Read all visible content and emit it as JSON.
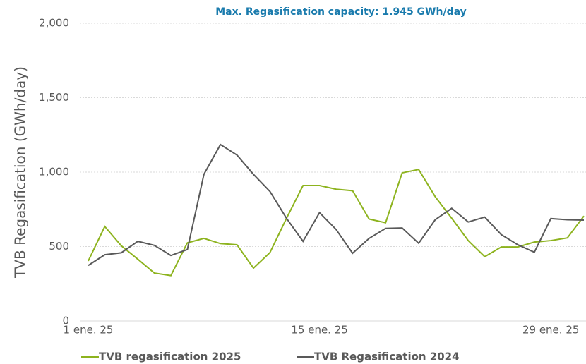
{
  "chart_data": {
    "type": "line",
    "title": "Max. Regasification capacity: 1.945 GWh/day",
    "y_label": "TVB Regasification (GWh/day)",
    "categories": [
      "1 ene. 25",
      null,
      null,
      null,
      null,
      null,
      null,
      null,
      null,
      null,
      null,
      null,
      null,
      null,
      "15 ene. 25",
      null,
      null,
      null,
      null,
      null,
      null,
      null,
      null,
      null,
      null,
      null,
      null,
      null,
      "29 ene. 25",
      null,
      null
    ],
    "series": [
      {
        "name": "TVB regasification 2025",
        "color": "#8db31e",
        "values": [
          403,
          635,
          505,
          415,
          322,
          305,
          525,
          555,
          520,
          512,
          355,
          460,
          690,
          910,
          910,
          885,
          875,
          685,
          660,
          995,
          1018,
          835,
          690,
          540,
          432,
          497,
          497,
          530,
          540,
          558,
          705
        ]
      },
      {
        "name": "TVB Regasification 2024",
        "color": "#595959",
        "values": [
          373,
          445,
          458,
          535,
          508,
          440,
          480,
          985,
          1185,
          1115,
          985,
          870,
          690,
          535,
          728,
          615,
          455,
          555,
          622,
          625,
          522,
          680,
          757,
          665,
          698,
          580,
          512,
          462,
          688,
          680,
          678
        ]
      }
    ],
    "ylim": [
      0,
      2000
    ],
    "yticks": [
      0,
      {
        "value": 500,
        "label": "500"
      },
      {
        "value": 1000,
        "label": "1,000"
      },
      {
        "value": 1500,
        "label": "1,500"
      },
      {
        "value": 2000,
        "label": "2,000"
      }
    ],
    "grid": true
  }
}
